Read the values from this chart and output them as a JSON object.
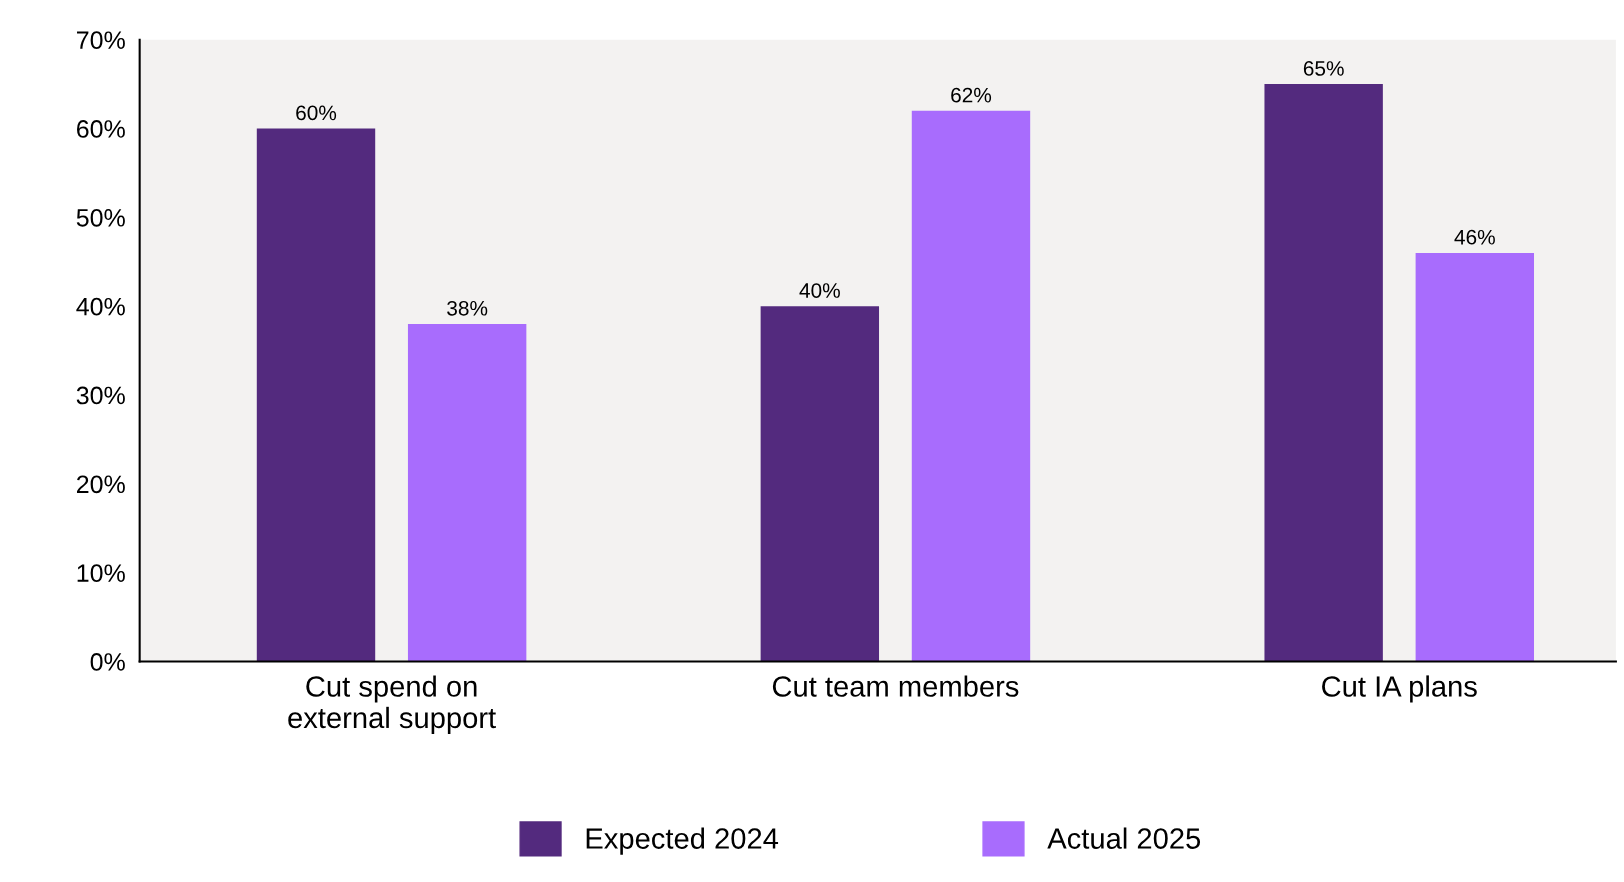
{
  "chart_data": {
    "type": "bar",
    "categories": [
      "Cut spend on\nexternal support",
      "Cut team members",
      "Cut IA plans"
    ],
    "series": [
      {
        "name": "Expected 2024",
        "color": "#532a7e",
        "values": [
          60,
          40,
          65
        ],
        "value_labels": [
          "60%",
          "40%",
          "65%"
        ]
      },
      {
        "name": "Actual 2025",
        "color": "#a86cfd",
        "values": [
          38,
          62,
          46
        ],
        "value_labels": [
          "38%",
          "62%",
          "46%"
        ]
      }
    ],
    "ylim": [
      0,
      70
    ],
    "yticks": [
      {
        "value": 0,
        "label": "0%"
      },
      {
        "value": 10,
        "label": "10%"
      },
      {
        "value": 20,
        "label": "20%"
      },
      {
        "value": 30,
        "label": "30%"
      },
      {
        "value": 40,
        "label": "40%"
      },
      {
        "value": 50,
        "label": "50%"
      },
      {
        "value": 60,
        "label": "60%"
      },
      {
        "value": 70,
        "label": "70%"
      }
    ],
    "grid": false,
    "legend": "bottom"
  }
}
